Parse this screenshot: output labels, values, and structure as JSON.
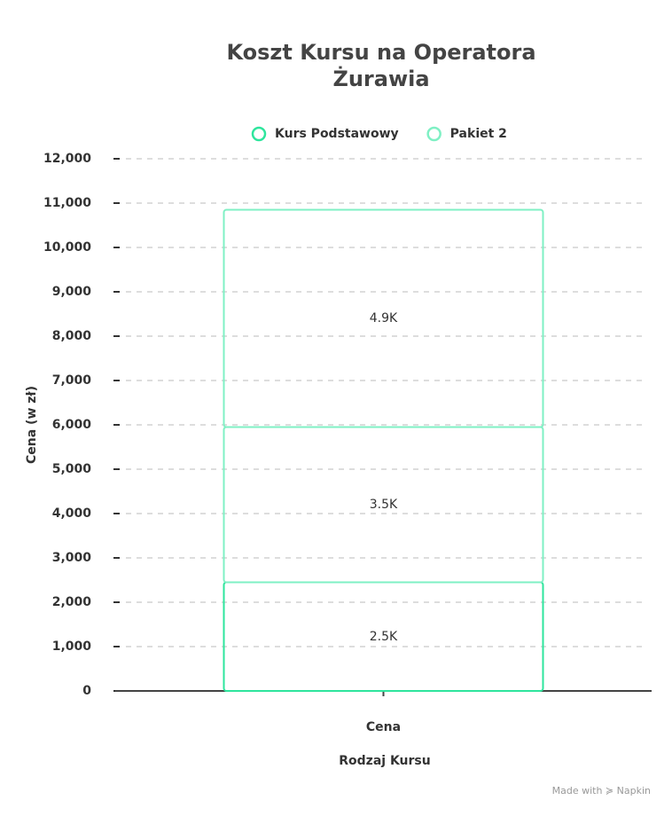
{
  "chart_data": {
    "type": "stacked-bar",
    "title": "Koszt Kursu na Operatora Żurawia",
    "categories": [
      "Cena"
    ],
    "series": [
      {
        "name": "Kurs Podstawowy",
        "color": "#2ee59d",
        "values": [
          2450
        ],
        "value_labels": [
          "2.5K"
        ]
      },
      {
        "name": "Pakiet 2",
        "color": "#7ff0c4",
        "values": [
          3500
        ],
        "value_labels": [
          "3.5K"
        ]
      },
      {
        "name": null,
        "color": "#7ff0c4",
        "values": [
          4900
        ],
        "value_labels": [
          "4.9K"
        ]
      }
    ],
    "x_label": "Rodzaj Kursu",
    "y_label": "Cena (w zł)",
    "ylim": [
      0,
      12000
    ],
    "yticks": [
      {
        "value": 0,
        "label": "0"
      },
      {
        "value": 1000,
        "label": "1,000"
      },
      {
        "value": 2000,
        "label": "2,000"
      },
      {
        "value": 3000,
        "label": "3,000"
      },
      {
        "value": 4000,
        "label": "4,000"
      },
      {
        "value": 5000,
        "label": "5,000"
      },
      {
        "value": 6000,
        "label": "6,000"
      },
      {
        "value": 7000,
        "label": "7,000"
      },
      {
        "value": 8000,
        "label": "8,000"
      },
      {
        "value": 9000,
        "label": "9,000"
      },
      {
        "value": 10000,
        "label": "10,000"
      },
      {
        "value": 11000,
        "label": "11,000"
      },
      {
        "value": 12000,
        "label": "12,000"
      }
    ],
    "grid": true,
    "legend": "top"
  },
  "footer": "Made with ≽ Napkin"
}
